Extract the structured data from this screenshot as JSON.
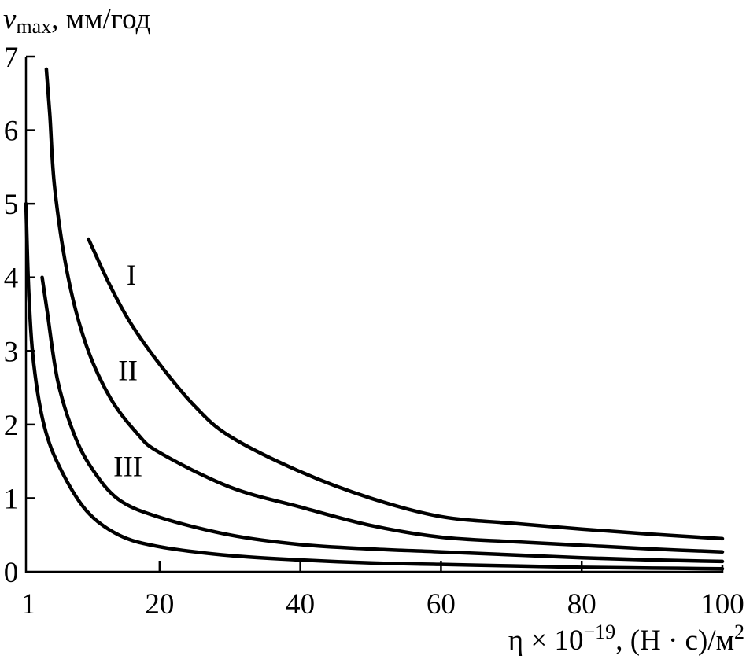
{
  "chart_data": {
    "type": "line",
    "title": "",
    "ylabel": {
      "var": "v",
      "sub": "max",
      "unit": ", мм/год"
    },
    "xlabel": {
      "main": "η × 10",
      "sup": "−19",
      "unit": ", (Н · с)/м",
      "unit_sup": "2"
    },
    "xlim": [
      1,
      100
    ],
    "ylim": [
      0,
      7
    ],
    "x_ticks": [
      1,
      20,
      40,
      60,
      80,
      100
    ],
    "x_tick_labels": [
      "1",
      "20",
      "40",
      "60",
      "80",
      "100"
    ],
    "y_ticks": [
      0,
      1,
      2,
      3,
      4,
      5,
      6,
      7
    ],
    "y_tick_labels": [
      "0",
      "1",
      "2",
      "3",
      "4",
      "5",
      "6",
      "7"
    ],
    "grid": false,
    "series": [
      {
        "name": "I",
        "label_at": [
          16,
          3.9
        ],
        "points": [
          [
            9.9,
            4.52
          ],
          [
            13,
            3.88
          ],
          [
            16,
            3.36
          ],
          [
            20,
            2.82
          ],
          [
            25,
            2.25
          ],
          [
            30,
            1.84
          ],
          [
            40,
            1.36
          ],
          [
            50,
            1.0
          ],
          [
            60,
            0.75
          ],
          [
            70,
            0.66
          ],
          [
            80,
            0.58
          ],
          [
            90,
            0.51
          ],
          [
            100,
            0.45
          ]
        ]
      },
      {
        "name": "II",
        "label_at": [
          15.5,
          2.6
        ],
        "points": [
          [
            3.9,
            6.83
          ],
          [
            4.4,
            6.2
          ],
          [
            5.1,
            5.2
          ],
          [
            7.0,
            4.0
          ],
          [
            9.6,
            3.07
          ],
          [
            13,
            2.36
          ],
          [
            16.8,
            1.88
          ],
          [
            20,
            1.62
          ],
          [
            30,
            1.15
          ],
          [
            40,
            0.88
          ],
          [
            50,
            0.63
          ],
          [
            60,
            0.47
          ],
          [
            70,
            0.41
          ],
          [
            80,
            0.36
          ],
          [
            90,
            0.31
          ],
          [
            100,
            0.27
          ]
        ]
      },
      {
        "name": "III",
        "label_at": [
          15.5,
          1.3
        ],
        "points": [
          [
            3.3,
            4.0
          ],
          [
            4.0,
            3.55
          ],
          [
            5.5,
            2.6
          ],
          [
            7.8,
            1.88
          ],
          [
            10.4,
            1.4
          ],
          [
            14.2,
            0.98
          ],
          [
            20,
            0.74
          ],
          [
            30,
            0.5
          ],
          [
            40,
            0.37
          ],
          [
            50,
            0.31
          ],
          [
            60,
            0.27
          ],
          [
            70,
            0.23
          ],
          [
            80,
            0.19
          ],
          [
            90,
            0.16
          ],
          [
            100,
            0.14
          ]
        ]
      },
      {
        "name": "",
        "points": [
          [
            1,
            5.0
          ],
          [
            1.4,
            3.8
          ],
          [
            2.1,
            2.83
          ],
          [
            3.6,
            1.98
          ],
          [
            5.9,
            1.4
          ],
          [
            9.6,
            0.83
          ],
          [
            14.2,
            0.5
          ],
          [
            20,
            0.34
          ],
          [
            30,
            0.22
          ],
          [
            40,
            0.16
          ],
          [
            50,
            0.12
          ],
          [
            60,
            0.1
          ],
          [
            70,
            0.08
          ],
          [
            80,
            0.06
          ],
          [
            90,
            0.05
          ],
          [
            100,
            0.04
          ]
        ]
      }
    ]
  }
}
